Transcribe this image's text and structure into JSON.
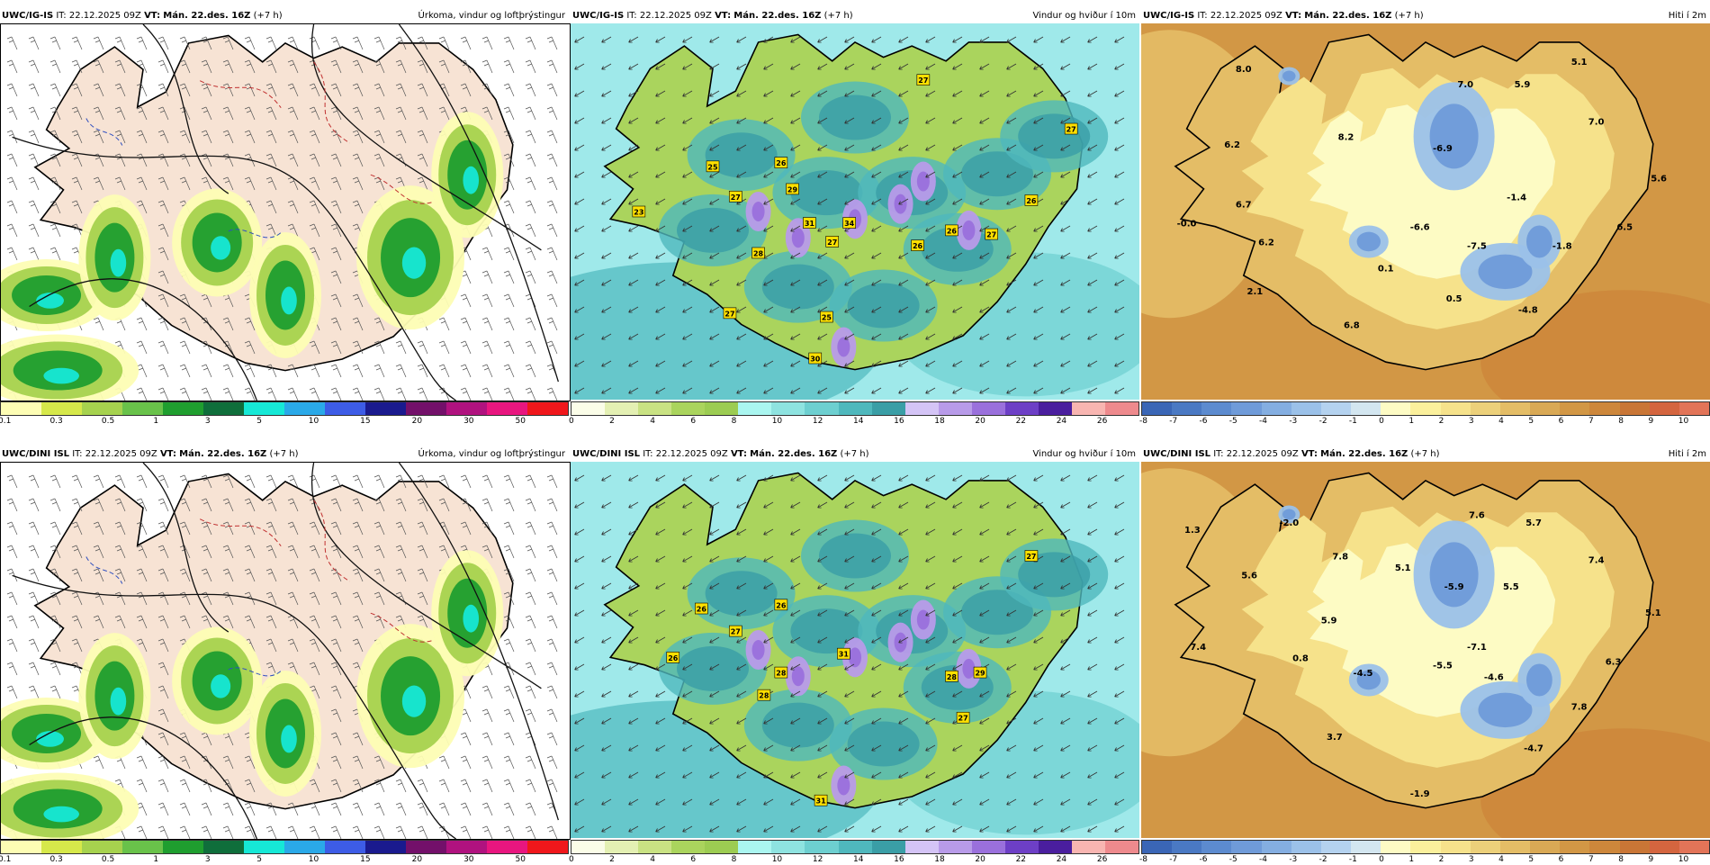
{
  "rows": [
    {
      "panels": [
        {
          "kind": "precip",
          "model": "UWC/IG-IS",
          "it_label": "IT:",
          "it": "22.12.2025 09Z",
          "vt_label": "VT:",
          "vt": "Mán. 22.des. 16Z",
          "lead": "(+7 h)",
          "product": "Úrkoma, vindur og loftþrýstingur"
        },
        {
          "kind": "wind",
          "model": "UWC/IG-IS",
          "it_label": "IT:",
          "it": "22.12.2025 09Z",
          "vt_label": "VT:",
          "vt": "Mán. 22.des. 16Z",
          "lead": "(+7 h)",
          "product": "Vindur og hviður í 10m",
          "gust_labels": [
            "27",
            "27",
            "25",
            "26",
            "27",
            "29",
            "31",
            "34",
            "27",
            "28",
            "26",
            "26",
            "27",
            "26",
            "23",
            "27",
            "25",
            "30"
          ]
        },
        {
          "kind": "temp",
          "model": "UWC/IG-IS",
          "it_label": "IT:",
          "it": "22.12.2025 09Z",
          "vt_label": "VT:",
          "vt": "Mán. 22.des. 16Z",
          "lead": "(+7 h)",
          "product": "Hiti í 2m",
          "temp_labels": [
            "5.1",
            "8.0",
            "7.0",
            "5.9",
            "7.0",
            "6.2",
            "8.2",
            "-6.9",
            "5.6",
            "-1.4",
            "6.7",
            "-0.0",
            "6.2",
            "-6.6",
            "-7.5",
            "-1.8",
            "6.5",
            "0.1",
            "2.1",
            "0.5",
            "-4.8",
            "6.8"
          ]
        }
      ]
    },
    {
      "panels": [
        {
          "kind": "precip",
          "model": "UWC/DINI ISL",
          "it_label": "IT:",
          "it": "22.12.2025 09Z",
          "vt_label": "VT:",
          "vt": "Mán. 22.des. 16Z",
          "lead": "(+7 h)",
          "product": "Úrkoma, vindur og loftþrýstingur"
        },
        {
          "kind": "wind",
          "model": "UWC/DINI ISL",
          "it_label": "IT:",
          "it": "22.12.2025 09Z",
          "vt_label": "VT:",
          "vt": "Mán. 22.des. 16Z",
          "lead": "(+7 h)",
          "product": "Vindur og hviður í 10m",
          "gust_labels": [
            "27",
            "26",
            "26",
            "27",
            "26",
            "28",
            "31",
            "28",
            "28",
            "29",
            "27",
            "31"
          ]
        },
        {
          "kind": "temp",
          "model": "UWC/DINI ISL",
          "it_label": "IT:",
          "it": "22.12.2025 09Z",
          "vt_label": "VT:",
          "vt": "Mán. 22.des. 16Z",
          "lead": "(+7 h)",
          "product": "Hiti í 2m",
          "temp_labels": [
            "1.3",
            "-2.0",
            "7.6",
            "5.7",
            "5.6",
            "7.8",
            "5.1",
            "-5.9",
            "5.5",
            "7.4",
            "5.1",
            "5.9",
            "-7.1",
            "7.4",
            "0.8",
            "-4.5",
            "-5.5",
            "-4.6",
            "6.3",
            "7.8",
            "3.7",
            "-4.7",
            "-1.9"
          ]
        }
      ]
    }
  ],
  "legends": {
    "precip": {
      "colors": [
        "#fdfdb4",
        "#d6e84a",
        "#a6d24e",
        "#69c24a",
        "#1f9e2f",
        "#0f6e3b",
        "#16e8d6",
        "#2aa9e8",
        "#3d5ce6",
        "#1a1a8e",
        "#73106a",
        "#b0127f",
        "#e8167f",
        "#f0171b"
      ],
      "labels": [
        "0.1",
        "0.3",
        "0.5",
        "1",
        "3",
        "5",
        "10",
        "15",
        "20",
        "30",
        "50"
      ]
    },
    "wind": {
      "colors": [
        "#fbfde8",
        "#e4f0b3",
        "#c9e283",
        "#aad45d",
        "#9ccc52",
        "#aaf6f0",
        "#8ee3e0",
        "#6dcfd0",
        "#4fb8bd",
        "#3a9ea6",
        "#d4c4f6",
        "#b89be9",
        "#9a70dc",
        "#6d3fc6",
        "#4a1e9e",
        "#f8b5b1",
        "#ee8a8d"
      ],
      "labels": [
        "0",
        "2",
        "4",
        "6",
        "8",
        "10",
        "12",
        "14",
        "16",
        "18",
        "20",
        "22",
        "24",
        "26"
      ]
    },
    "temp": {
      "colors": [
        "#3a66b6",
        "#4a79c3",
        "#5c8bcf",
        "#6f9bd9",
        "#84aee1",
        "#9bc1e9",
        "#b4d2ef",
        "#d3e6f0",
        "#fdfbc4",
        "#fbf09c",
        "#f6e28b",
        "#ecd07a",
        "#e4bd66",
        "#d9a955",
        "#d29745",
        "#cd873b",
        "#c97636",
        "#d4653f",
        "#e27458"
      ],
      "labels": [
        "-8",
        "-7",
        "-6",
        "-5",
        "-4",
        "-3",
        "-2",
        "-1",
        "0",
        "1",
        "2",
        "3",
        "4",
        "5",
        "6",
        "7",
        "8",
        "9",
        "10"
      ]
    }
  }
}
